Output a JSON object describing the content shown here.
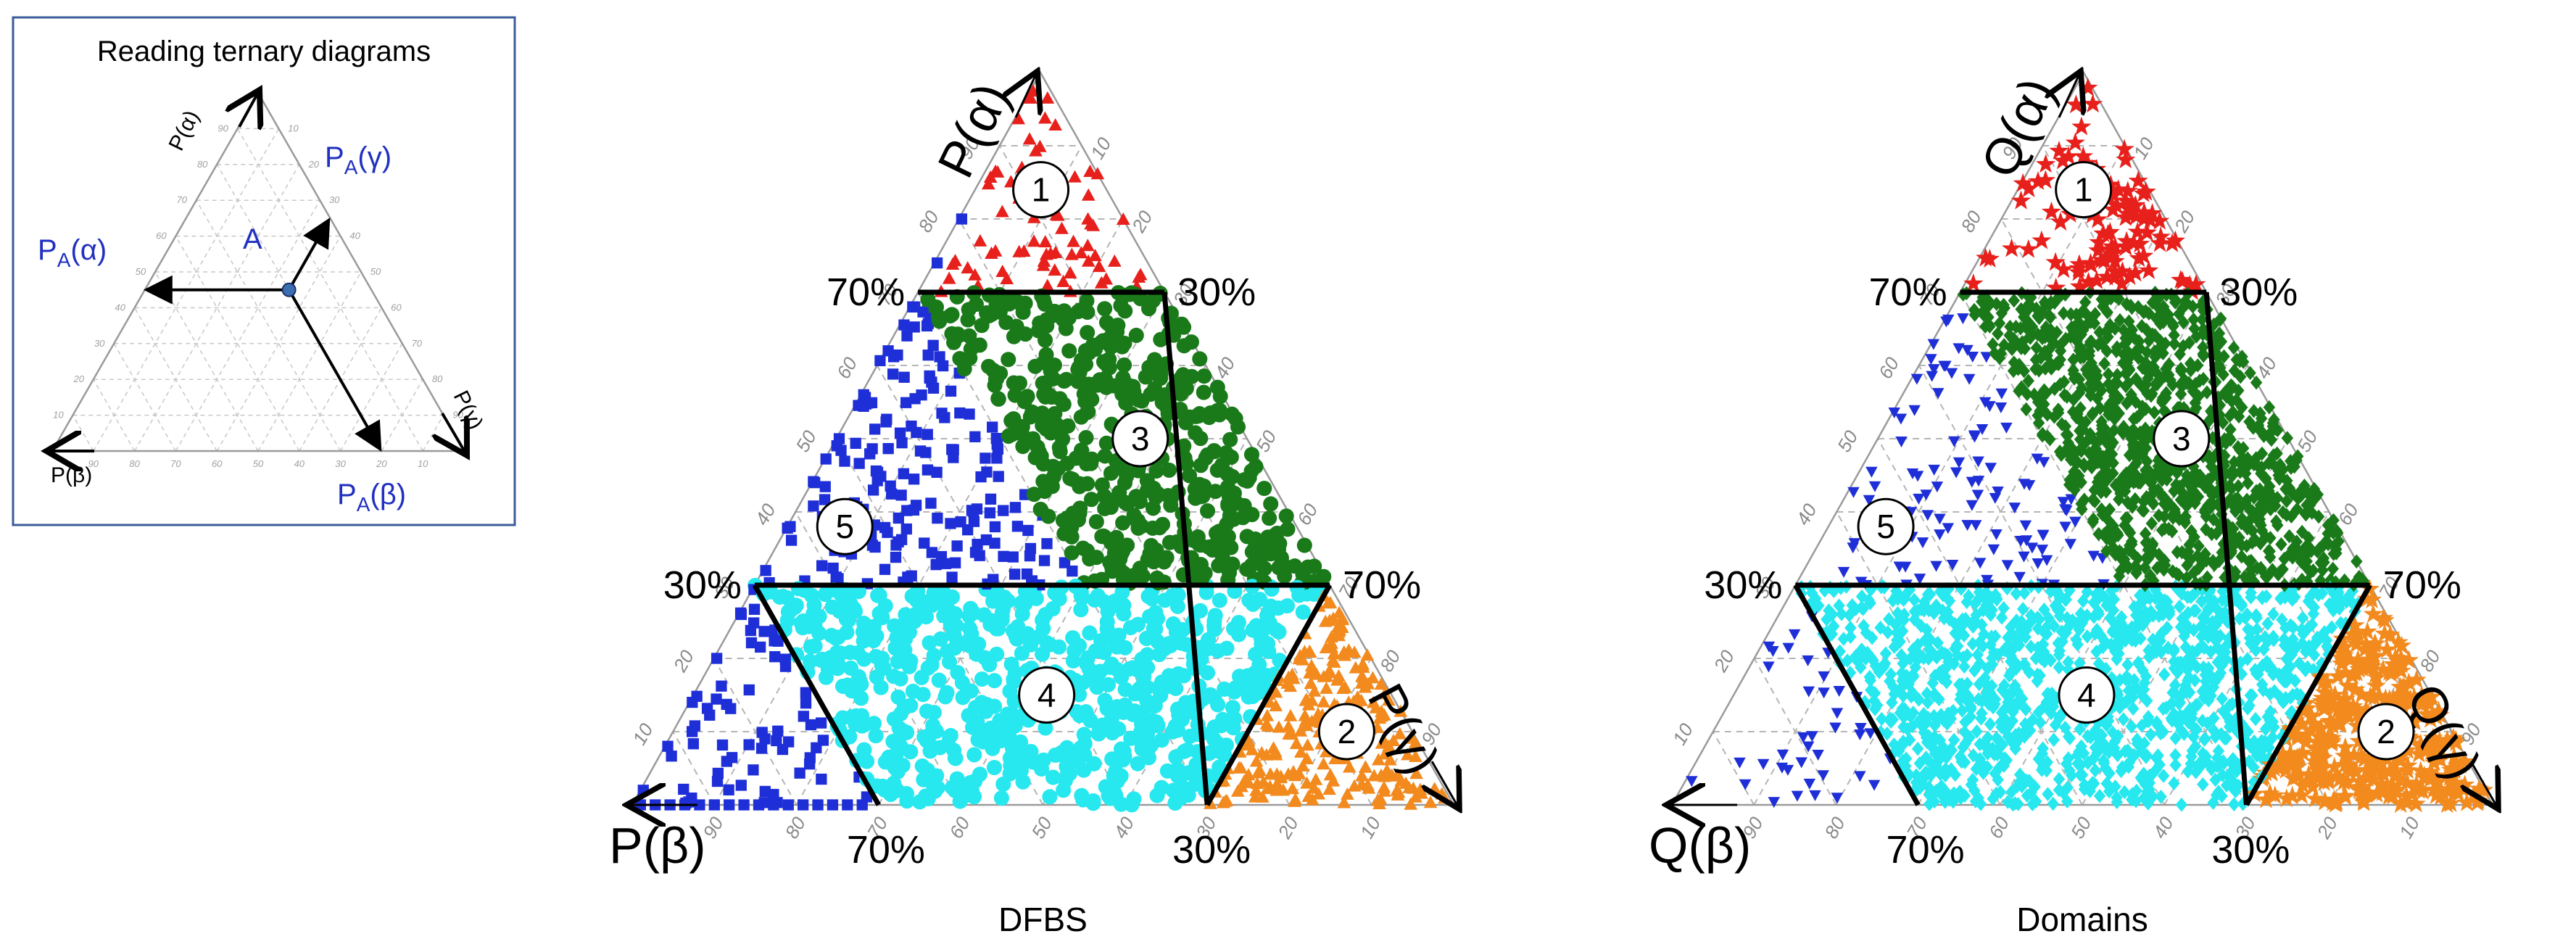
{
  "inset": {
    "title": "Reading ternary diagrams",
    "axis_alpha": "P(α)",
    "axis_beta": "P(β)",
    "axis_gamma": "P(γ)",
    "point": "A",
    "pa_alpha": "PA(α)",
    "pa_beta": "PA(β)",
    "pa_gamma": "PA(γ)",
    "example_point": {
      "alpha": 0.45,
      "beta": 0.2,
      "gamma": 0.35
    }
  },
  "colors": {
    "region1": "#e8201c",
    "region2": "#f28a1e",
    "region3": "#1a7a1a",
    "region4": "#26e8ee",
    "region5": "#1f2fd8",
    "inset_blue": "#2030c0"
  },
  "chart_data": [
    {
      "type": "scatter",
      "subtype": "ternary",
      "caption": "DFBS",
      "axes": {
        "top": "P(α)",
        "left": "P(β)",
        "right": "P(γ)"
      },
      "ticks": [
        "10",
        "20",
        "30",
        "40",
        "50",
        "60",
        "70",
        "80",
        "90"
      ],
      "thresholds": {
        "alpha_70": "70%",
        "alpha_30": "30%",
        "gamma_30": "30%",
        "gamma_70": "70%",
        "beta_70": "70%",
        "beta_30": "30%"
      },
      "regions": [
        {
          "id": "1",
          "marker": "triangle",
          "color": "#e8201c",
          "rule": "P(α) ≥ 70%",
          "approx_points": 70
        },
        {
          "id": "2",
          "marker": "triangle",
          "color": "#f28a1e",
          "rule": "P(γ) ≥ 70%",
          "approx_points": 260
        },
        {
          "id": "3",
          "marker": "circle",
          "color": "#1a7a1a",
          "rule": "30% ≤ P(α) < 70%, P(β) < 30%",
          "approx_points": 520
        },
        {
          "id": "4",
          "marker": "circle",
          "color": "#26e8ee",
          "rule": "P(α) < 30%, P(β) < 70%, P(γ) < 70%",
          "approx_points": 700
        },
        {
          "id": "5",
          "marker": "square",
          "color": "#1f2fd8",
          "rule": "P(β) ≥ 30% outside 1, 4",
          "approx_points": 230
        }
      ]
    },
    {
      "type": "scatter",
      "subtype": "ternary",
      "caption": "Domains",
      "axes": {
        "top": "Q(α)",
        "left": "Q(β)",
        "right": "Q(γ)"
      },
      "ticks": [
        "10",
        "20",
        "30",
        "40",
        "50",
        "60",
        "70",
        "80",
        "90"
      ],
      "thresholds": {
        "alpha_70": "70%",
        "alpha_30": "30%",
        "gamma_30": "30%",
        "gamma_70": "70%",
        "beta_70": "70%",
        "beta_30": "30%"
      },
      "regions": [
        {
          "id": "1",
          "marker": "star",
          "color": "#e8201c",
          "rule": "Q(α) ≥ 70%",
          "approx_points": 110
        },
        {
          "id": "2",
          "marker": "star",
          "color": "#f28a1e",
          "rule": "Q(γ) ≥ 70%",
          "approx_points": 380
        },
        {
          "id": "3",
          "marker": "diamond",
          "color": "#1a7a1a",
          "rule": "30% ≤ Q(α) < 70%, Q(β) < 30%",
          "approx_points": 1100
        },
        {
          "id": "4",
          "marker": "diamond",
          "color": "#26e8ee",
          "rule": "Q(α) < 30%, Q(β) < 70%, Q(γ) < 70%",
          "approx_points": 1300
        },
        {
          "id": "5",
          "marker": "triangle-down",
          "color": "#1f2fd8",
          "rule": "Q(β) ≥ 30% outside 1, 4",
          "approx_points": 150
        }
      ]
    }
  ]
}
